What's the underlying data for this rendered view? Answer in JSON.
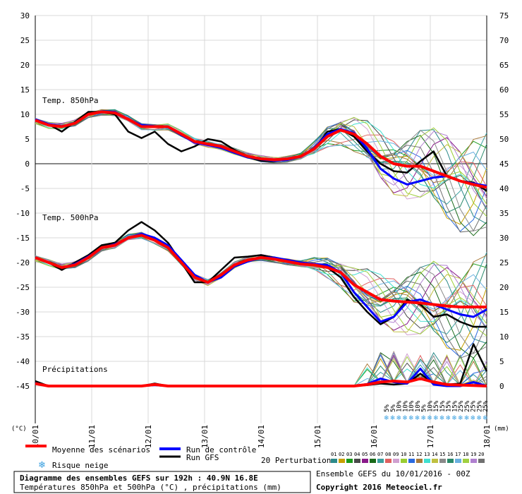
{
  "chart_data": {
    "type": "line",
    "title": "Diagramme des ensembles GEFS sur 192h : 40.9N 16.8E",
    "subtitle": "Températures 850hPa et 500hPa (°C) , précipitations (mm)",
    "left_axis_unit": "(°C)",
    "right_axis_unit": "(mm)",
    "left_ticks": [
      "30",
      "25",
      "20",
      "15",
      "10",
      "5",
      "0",
      "-5",
      "-10",
      "-15",
      "-20",
      "-25",
      "-30",
      "-35",
      "-40",
      "-45"
    ],
    "right_ticks": [
      "75",
      "70",
      "65",
      "60",
      "55",
      "50",
      "45",
      "40",
      "35",
      "30",
      "25",
      "20",
      "15",
      "10",
      "5",
      "0"
    ],
    "x_ticks": [
      "10/01",
      "11/01",
      "12/01",
      "13/01",
      "14/01",
      "15/01",
      "16/01",
      "17/01",
      "18/01"
    ],
    "panels": {
      "t850": "Temp. 850hPa",
      "t500": "Temp. 500hPa",
      "precip": "Précipitations"
    },
    "legend": {
      "mean": "Moyenne des scénarios",
      "control": "Run de contrôle",
      "gfs": "Run GFS",
      "snow": "Risque neige",
      "perturbations": "20 Perturbations",
      "perturbation_ids": [
        "01",
        "02",
        "03",
        "04",
        "05",
        "06",
        "07",
        "08",
        "09",
        "10",
        "11",
        "12",
        "13",
        "14",
        "15",
        "16",
        "17",
        "18",
        "19",
        "20"
      ],
      "perturbation_colors": [
        "#2c8a8a",
        "#c8a000",
        "#1a9a1a",
        "#4a4a4a",
        "#8a1a8a",
        "#1a6a1a",
        "#3aa0a0",
        "#e06060",
        "#d0a0d0",
        "#9acd32",
        "#2a6ae0",
        "#aa7a3a",
        "#40e0d0",
        "#c0c040",
        "#8a8a8a",
        "#2a8a6a",
        "#6ab0e0",
        "#a0d040",
        "#b080d0",
        "#707070"
      ]
    },
    "snow_risk": [
      "5%",
      "5%",
      "10%",
      "10%",
      "10%",
      "10%",
      "5%",
      "10%",
      "15%",
      "15%",
      "15%",
      "15%",
      "25%",
      "25%",
      "25%",
      "25%",
      "25%"
    ],
    "footer": {
      "run_info": "Ensemble GEFS du 10/01/2016 - 00Z",
      "copyright": "Copyright 2016 Meteociel.fr"
    },
    "series": [
      {
        "name": "Moyenne des scénarios",
        "color": "#ff0000",
        "t850": [
          8.8,
          7.8,
          7.5,
          8.2,
          10,
          10.5,
          10.3,
          9,
          7.5,
          7.5,
          7.5,
          6,
          4.5,
          4,
          3.5,
          2.5,
          1.5,
          1,
          0.8,
          1,
          1.5,
          3,
          5.5,
          6.8,
          6,
          4,
          1.5,
          0,
          -0.5,
          -0.5,
          -1.5,
          -2.5,
          -3.5,
          -4.2,
          -4.8
        ],
        "t500": [
          -19,
          -20,
          -21,
          -20.5,
          -19,
          -17,
          -16.5,
          -15,
          -14.5,
          -15.5,
          -17,
          -20,
          -23,
          -24,
          -22.5,
          -20.5,
          -19.5,
          -19,
          -19.3,
          -19.8,
          -20.3,
          -20.5,
          -21,
          -22,
          -24.5,
          -26,
          -27.5,
          -27.8,
          -28,
          -28.2,
          -28.5,
          -28.8,
          -29,
          -29,
          -29
        ],
        "precip": [
          0.5,
          0,
          0,
          0,
          0,
          0,
          0,
          0,
          0,
          0.3,
          0,
          0,
          0,
          0,
          0,
          0,
          0,
          0,
          0,
          0,
          0,
          0,
          0,
          0,
          0,
          0.3,
          0.8,
          1,
          0.8,
          1.5,
          0.8,
          0.3,
          0.2,
          0.1,
          0
        ]
      },
      {
        "name": "Run de contrôle",
        "color": "#0000ff",
        "t850": [
          9,
          8,
          7.6,
          8.3,
          10,
          10.6,
          10.5,
          9,
          7.8,
          7.6,
          7.4,
          5.8,
          4.3,
          3.8,
          3.2,
          2.2,
          1.3,
          0.9,
          0.6,
          0.8,
          1.4,
          3.2,
          6,
          7,
          6.2,
          3,
          -1,
          -3,
          -4.2,
          -3.5,
          -2.8,
          -2.5,
          -3.5,
          -4,
          -4.5
        ],
        "t500": [
          -19,
          -20,
          -21,
          -20.3,
          -18.8,
          -17,
          -16.3,
          -15,
          -14.2,
          -15,
          -16.5,
          -19.5,
          -22.5,
          -24,
          -23,
          -20.8,
          -19.8,
          -19,
          -19,
          -19.5,
          -20,
          -20.3,
          -20.5,
          -22,
          -26,
          -29,
          -32,
          -31,
          -28,
          -27.5,
          -28.5,
          -29.5,
          -30.5,
          -31,
          -29.5
        ],
        "precip": [
          0.6,
          0,
          0,
          0,
          0,
          0,
          0,
          0,
          0,
          0.2,
          0,
          0,
          0,
          0,
          0,
          0,
          0,
          0,
          0,
          0,
          0,
          0,
          0,
          0,
          0,
          0.4,
          1.5,
          0.8,
          0.5,
          3.5,
          0.3,
          0,
          0,
          0.8,
          0
        ]
      },
      {
        "name": "Run GFS",
        "color": "#000000",
        "t850": [
          9,
          8,
          6.5,
          8.5,
          10.5,
          10.5,
          10,
          6.5,
          5.2,
          6.5,
          4,
          2.5,
          3.5,
          5,
          4.5,
          2.8,
          1.3,
          0.6,
          0.5,
          1,
          1.5,
          3,
          6.5,
          7,
          5.5,
          2.5,
          0,
          -1.5,
          -1.8,
          0.5,
          2.5,
          -2.5,
          -3.5,
          -3.8,
          -5.5
        ],
        "t500": [
          -19,
          -20,
          -21.5,
          -20,
          -18.5,
          -16.5,
          -16,
          -13.5,
          -11.8,
          -13.5,
          -16,
          -20,
          -24,
          -24,
          -21.5,
          -19,
          -18.8,
          -18.5,
          -19,
          -19.5,
          -20,
          -20.5,
          -21,
          -23,
          -27,
          -30,
          -32.5,
          -31,
          -27.5,
          -28.5,
          -31,
          -30.5,
          -32,
          -33,
          -33
        ],
        "precip": [
          1,
          0,
          0,
          0,
          0,
          0,
          0,
          0,
          0,
          0.5,
          0,
          0,
          0,
          0,
          0,
          0,
          0,
          0,
          0,
          0,
          0,
          0,
          0,
          0,
          0,
          0.2,
          0.5,
          0.3,
          0.5,
          2.5,
          0.5,
          0.3,
          0.5,
          8.5,
          3
        ]
      }
    ]
  }
}
